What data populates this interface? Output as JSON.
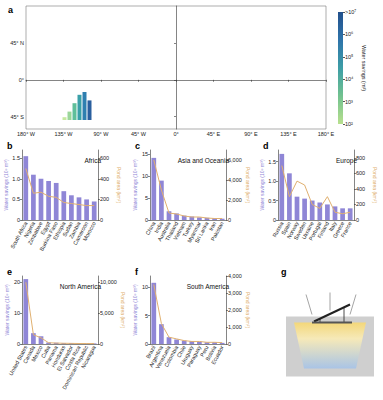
{
  "chart_data": [
    {
      "type": "map",
      "letter": "a",
      "xlim": [
        -180,
        180
      ],
      "xticks": [
        {
          "value": -180,
          "label": "180° W"
        },
        {
          "value": -135,
          "label": "135° W"
        },
        {
          "value": -90,
          "label": "90° W"
        },
        {
          "value": -45,
          "label": "45° W"
        },
        {
          "value": 0,
          "label": "0°"
        },
        {
          "value": 45,
          "label": "45° E"
        },
        {
          "value": 90,
          "label": "90° E"
        },
        {
          "value": 135,
          "label": "135° E"
        },
        {
          "value": 180,
          "label": "180° E"
        }
      ],
      "ylim": [
        -60,
        90
      ],
      "yticks": [
        {
          "value": -45,
          "label": "45° S"
        },
        {
          "value": 0,
          "label": "0°"
        },
        {
          "value": 45,
          "label": "45° N"
        }
      ],
      "grid": false,
      "colorbar": {
        "label": "Water savings (m³)",
        "range": [
          100,
          10000000
        ],
        "ticks": [
          {
            "value": 100,
            "label": "10²"
          },
          {
            "value": 1000,
            "label": "10³"
          },
          {
            "value": 10000,
            "label": "10⁴"
          },
          {
            "value": 100000,
            "label": "10⁵"
          },
          {
            "value": 1000000,
            "label": "10⁶"
          },
          {
            "value": 10000000,
            "label": ">10⁷"
          }
        ],
        "colors": [
          "#b8e08e",
          "#72c28f",
          "#3d9ea6",
          "#2e74aa",
          "#23508c"
        ]
      },
      "inset": {
        "values": [
          0.5,
          1.5,
          3,
          4.5,
          5,
          3.5
        ],
        "colors": [
          "#c6e8a0",
          "#9bd69a",
          "#5fbf9a",
          "#3aa0a8",
          "#2e7fb0",
          "#2a5f9e"
        ]
      }
    },
    {
      "type": "bar",
      "letter": "b",
      "title": "Africa",
      "categories": [
        "South Africa",
        "Nigeria",
        "Zimbabwe",
        "Egypt",
        "Burkina Faso",
        "Ethiopia",
        "Sudan",
        "Zambia",
        "Cameroon",
        "Morocco"
      ],
      "ylabel": "Water savings (10⁸ m³)",
      "y2label": "Pond area (km²)",
      "series": [
        {
          "type": "bar",
          "color": "#8f86d6",
          "values": [
            1.55,
            1.1,
            1.0,
            0.95,
            0.9,
            0.7,
            0.6,
            0.55,
            0.5,
            0.45
          ]
        },
        {
          "type": "line",
          "axis": "y2",
          "color": "#e0b070",
          "values": [
            500,
            260,
            270,
            230,
            220,
            170,
            160,
            150,
            140,
            140
          ]
        }
      ],
      "ylim": [
        0,
        1.7
      ],
      "yticks": [
        0,
        0.5,
        {
          "value": 1,
          "label": "1.0"
        },
        1.5
      ],
      "y2lim": [
        0,
        680
      ],
      "y2ticks": [
        0,
        200,
        400,
        600
      ]
    },
    {
      "type": "bar",
      "letter": "c",
      "title": "Asia and Oceania",
      "categories": [
        "China",
        "India",
        "Australia",
        "Thailand",
        "Vietnam",
        "Turkey",
        "Myanmar",
        "Sri Lanka",
        "Iran",
        "Pakistan"
      ],
      "ylabel": "Water savings (10⁸ m³)",
      "y2label": "Pond area (km²)",
      "series": [
        {
          "type": "bar",
          "color": "#8f86d6",
          "values": [
            14.2,
            9.0,
            2.0,
            1.5,
            1.0,
            0.8,
            0.6,
            0.5,
            0.4,
            0.3
          ]
        },
        {
          "type": "line",
          "axis": "y2",
          "color": "#e0b070",
          "values": [
            6000,
            3000,
            700,
            600,
            400,
            300,
            300,
            200,
            150,
            150
          ]
        }
      ],
      "ylim": [
        0,
        16
      ],
      "yticks": [
        0,
        5,
        10,
        15
      ],
      "y2lim": [
        0,
        7000
      ],
      "y2ticks": [
        0,
        {
          "value": 2000,
          "label": "2,000"
        },
        {
          "value": 4000,
          "label": "4,000"
        },
        {
          "value": 6000,
          "label": "6,000"
        }
      ]
    },
    {
      "type": "bar",
      "letter": "d",
      "title": "Europe",
      "categories": [
        "Russia",
        "Spain",
        "Norway",
        "Sweden",
        "Ukraine",
        "Portugal",
        "Finland",
        "Italy",
        "Greece",
        "France"
      ],
      "ylabel": "Water savings (10⁸ m³)",
      "y2label": "Pond area (km²)",
      "series": [
        {
          "type": "bar",
          "color": "#8f86d6",
          "values": [
            1.7,
            1.2,
            0.6,
            0.55,
            0.5,
            0.45,
            0.4,
            0.35,
            0.3,
            0.3
          ]
        },
        {
          "type": "line",
          "axis": "y2",
          "color": "#e0b070",
          "values": [
            700,
            300,
            500,
            450,
            200,
            150,
            300,
            100,
            80,
            100
          ]
        }
      ],
      "ylim": [
        0,
        1.8
      ],
      "yticks": [
        0,
        0.5,
        {
          "value": 1,
          "label": "1.0"
        },
        1.5
      ],
      "y2lim": [
        0,
        900
      ],
      "y2ticks": [
        0,
        200,
        400,
        600,
        800
      ]
    },
    {
      "type": "bar",
      "letter": "e",
      "title": "North America",
      "categories": [
        "United States",
        "Canada",
        "Mexico",
        "Cuba",
        "Panama",
        "Honduras",
        "El Salvador",
        "Costa Rica",
        "Dominican Republic",
        "Nicaragua"
      ],
      "ylabel": "Water savings (10⁸ m³)",
      "y2label": "Pond area (km²)",
      "series": [
        {
          "type": "bar",
          "color": "#8f86d6",
          "values": [
            21,
            3.5,
            2.5,
            0.5,
            0.4,
            0.3,
            0.3,
            0.2,
            0.2,
            0.2
          ]
        },
        {
          "type": "line",
          "axis": "y2",
          "color": "#e0b070",
          "values": [
            10000,
            1500,
            1000,
            200,
            150,
            120,
            100,
            80,
            80,
            70
          ]
        }
      ],
      "ylim": [
        0,
        22
      ],
      "yticks": [
        0,
        10,
        20
      ],
      "y2lim": [
        0,
        11000
      ],
      "y2ticks": [
        0,
        {
          "value": 5000,
          "label": "5,000"
        },
        {
          "value": 10000,
          "label": "10,000"
        }
      ]
    },
    {
      "type": "bar",
      "letter": "f",
      "title": "South America",
      "categories": [
        "Brazil",
        "Argentina",
        "Venezuela",
        "Colombia",
        "Chile",
        "Uruguay",
        "Paraguay",
        "Peru",
        "Bolivia",
        "Ecuador"
      ],
      "ylabel": "Water savings (10⁸ m³)",
      "y2label": "Pond area (km²)",
      "series": [
        {
          "type": "bar",
          "color": "#8f86d6",
          "values": [
            10.8,
            3.5,
            1.2,
            0.8,
            0.6,
            0.5,
            0.4,
            0.3,
            0.3,
            0.2
          ]
        },
        {
          "type": "line",
          "axis": "y2",
          "color": "#e0b070",
          "values": [
            3500,
            1200,
            400,
            300,
            200,
            150,
            150,
            100,
            100,
            80
          ]
        }
      ],
      "ylim": [
        0,
        12
      ],
      "yticks": [
        0,
        5,
        10
      ],
      "y2lim": [
        0,
        4000
      ],
      "y2ticks": [
        0,
        {
          "value": 1000,
          "label": "1,000"
        },
        {
          "value": 2000,
          "label": "2,000"
        },
        {
          "value": 3000,
          "label": "3,000"
        },
        {
          "value": 4000,
          "label": "4,000"
        }
      ]
    }
  ],
  "diagram": {
    "letter": "g"
  }
}
